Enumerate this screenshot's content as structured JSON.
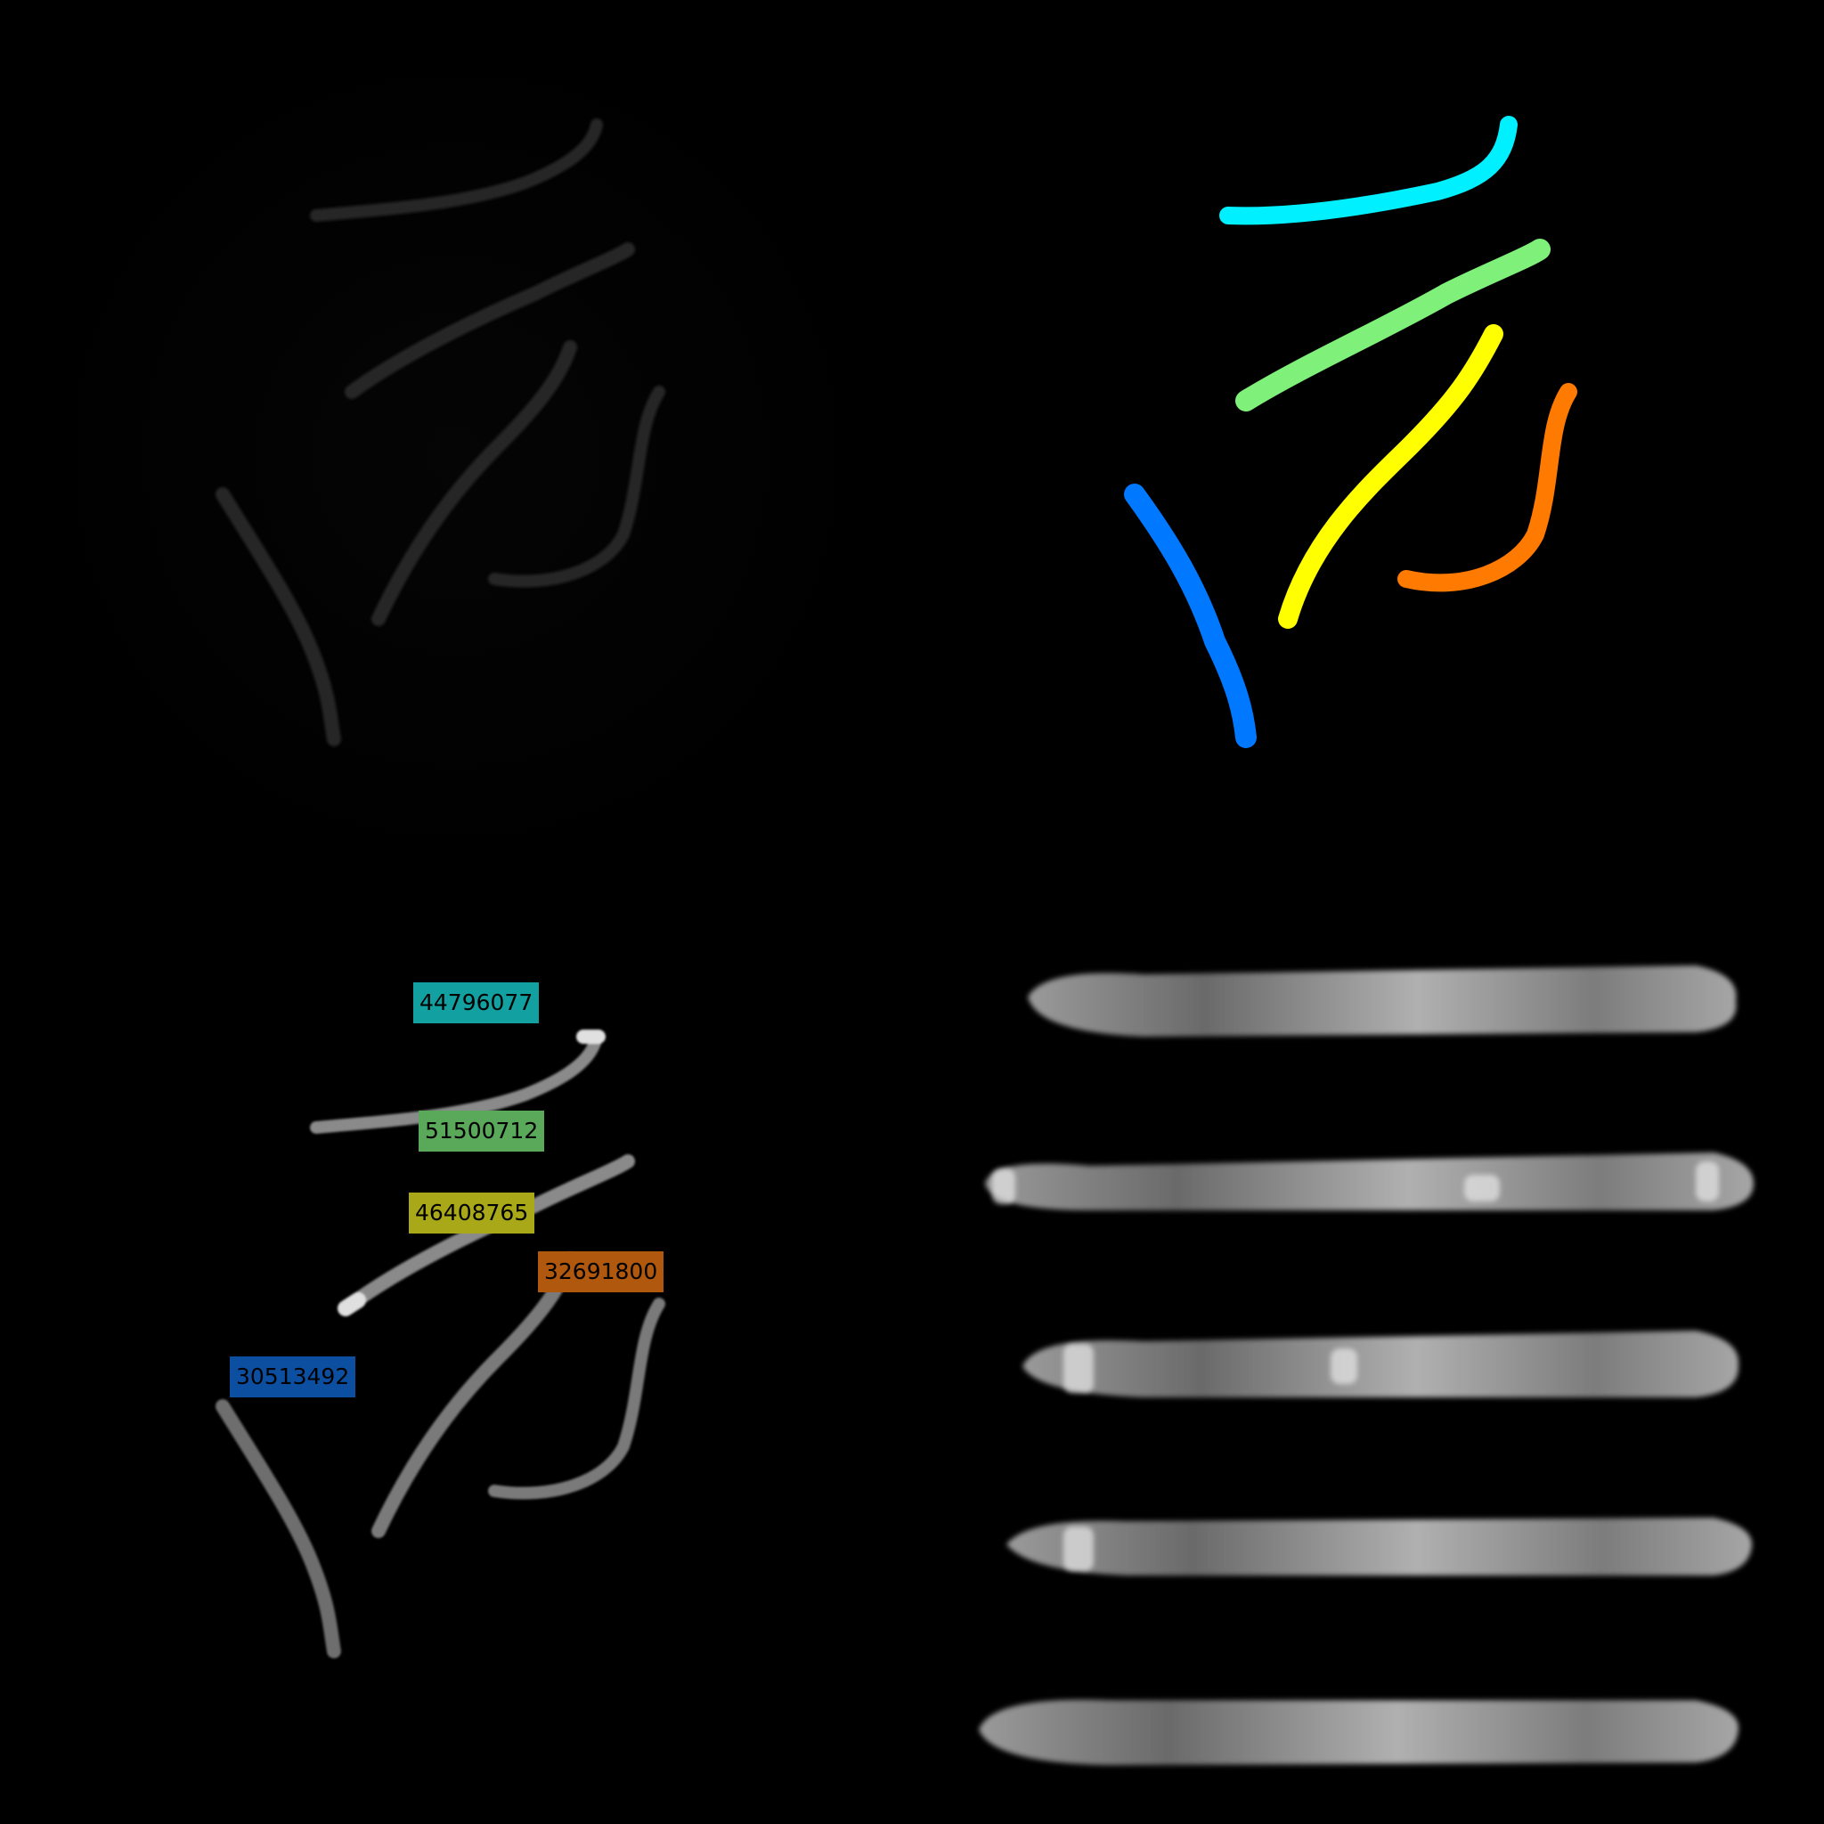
{
  "colors": {
    "background": "#000000",
    "worm_gray": "#8a8a8a",
    "worm_gray_bright": "#d8d8d8"
  },
  "panels": {
    "raw_fluorescence": {
      "description_hidden": true
    },
    "segmentation_mask": {
      "worms": [
        {
          "color": "#00f0ff",
          "icon": "worm-mask-cyan"
        },
        {
          "color": "#7ff07a",
          "icon": "worm-mask-green"
        },
        {
          "color": "#ffff00",
          "icon": "worm-mask-yellow"
        },
        {
          "color": "#ff7a00",
          "icon": "worm-mask-orange"
        },
        {
          "color": "#0078ff",
          "icon": "worm-mask-blue"
        }
      ]
    },
    "labeled_overlay": {
      "labels": [
        {
          "id": "44796077",
          "color": "#12a0a0"
        },
        {
          "id": "51500712",
          "color": "#5aa85a"
        },
        {
          "id": "46408765",
          "color": "#a8a818"
        },
        {
          "id": "32691800",
          "color": "#b0580e"
        },
        {
          "id": "30513492",
          "color": "#0c4fa0"
        }
      ]
    },
    "straightened_worms": {
      "count": 5
    }
  }
}
